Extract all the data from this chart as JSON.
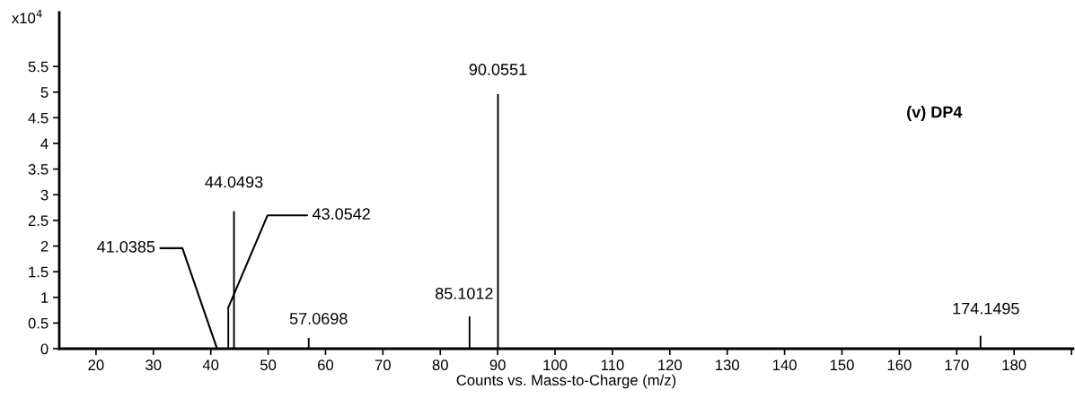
{
  "chart_data": {
    "type": "bar",
    "xlabel": "Counts vs. Mass-to-Charge (m/z)",
    "ylabel": "x10$^{4}$",
    "annotations": [
      "(v) DP4",
      {
        "text": "41.0385",
        "x": 41.0385,
        "y": 0.02
      },
      {
        "text": "43.0542",
        "x": 43.0542,
        "y": 0.8
      },
      {
        "text": "44.0493",
        "x": 44.0493,
        "y": 2.68
      },
      {
        "text": "57.0698",
        "x": 57.0698,
        "y": 0.21
      },
      {
        "text": "85.1012",
        "x": 85.1012,
        "y": 0.63
      },
      {
        "text": "90.0551",
        "x": 90.0551,
        "y": 4.96
      },
      {
        "text": "174.1495",
        "x": 174.1495,
        "y": 0.25
      }
    ],
    "x": [
      41.0385,
      43.0542,
      44.0493,
      57.0698,
      85.1012,
      90.0551,
      174.1495
    ],
    "values": [
      0.02,
      0.8,
      2.68,
      0.21,
      0.63,
      4.96,
      0.25
    ],
    "color": "#000000",
    "xlim": [
      13.6,
      190.3
    ],
    "xticks": [
      20,
      30,
      40,
      50,
      60,
      70,
      80,
      90,
      100,
      110,
      120,
      130,
      140,
      150,
      160,
      170,
      180,
      {
        "value": 190,
        "label": null
      }
    ],
    "ylim": [
      0,
      6.55
    ],
    "yticks": [
      0,
      0.5,
      1,
      1.5,
      2,
      2.5,
      3,
      3.5,
      4,
      4.5,
      5,
      5.5
    ]
  }
}
